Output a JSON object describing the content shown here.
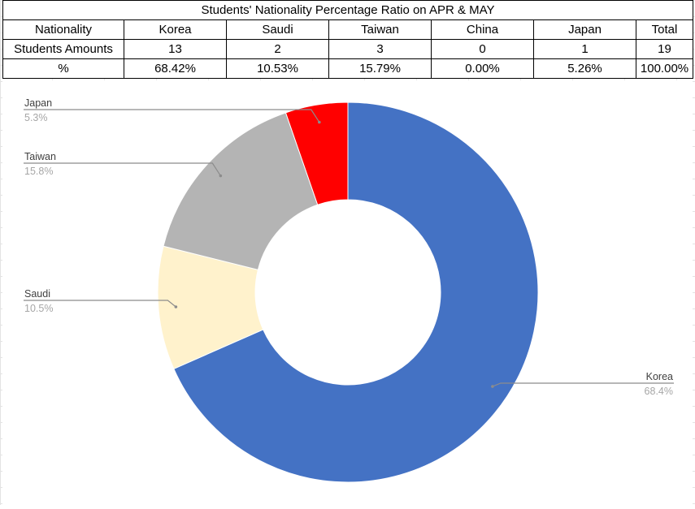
{
  "table": {
    "title": "Students' Nationality Percentage Ratio on APR & MAY",
    "header_row": [
      "Nationality",
      "Korea",
      "Saudi",
      "Taiwan",
      "China",
      "Japan",
      "Total"
    ],
    "amount_row": [
      "Students Amounts",
      "13",
      "2",
      "3",
      "0",
      "1",
      "19"
    ],
    "percent_row": [
      "%",
      "68.42%",
      "10.53%",
      "15.79%",
      "0.00%",
      "5.26%",
      "100.00%"
    ]
  },
  "chart_data": {
    "type": "pie",
    "variant": "donut",
    "title": "",
    "slices": [
      {
        "label": "Korea",
        "value": 68.4,
        "display": "68.4%",
        "color": "#4472C4"
      },
      {
        "label": "Saudi",
        "value": 10.5,
        "display": "10.5%",
        "color": "#FFF2CC"
      },
      {
        "label": "Taiwan",
        "value": 15.8,
        "display": "15.8%",
        "color": "#B4B4B4"
      },
      {
        "label": "Japan",
        "value": 5.3,
        "display": "5.3%",
        "color": "#FF0000"
      }
    ],
    "start": "12 o'clock",
    "direction": "clockwise",
    "legend": "none",
    "labels": "outside with leader lines"
  }
}
